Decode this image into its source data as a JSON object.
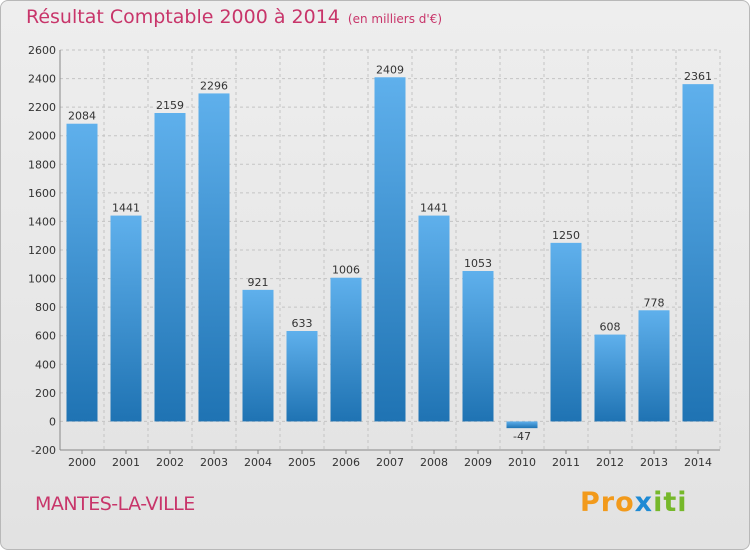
{
  "header": {
    "title": "Résultat Comptable 2000 à 2014",
    "subtitle": "(en milliers d'€)"
  },
  "footer": {
    "town": "MANTES-LA-VILLE",
    "brand": {
      "part1": "Pro",
      "part2": "x",
      "part3": "iti"
    }
  },
  "colors": {
    "title": "#c8356a",
    "bar_light": "#5fb0ec",
    "bar_dark": "#1f73b3",
    "grid": "#c4c4c4"
  },
  "chart_data": {
    "type": "bar",
    "title": "Résultat Comptable 2000 à 2014",
    "subtitle": "(en milliers d'€)",
    "categories": [
      "2000",
      "2001",
      "2002",
      "2003",
      "2004",
      "2005",
      "2006",
      "2007",
      "2008",
      "2009",
      "2010",
      "2011",
      "2012",
      "2013",
      "2014"
    ],
    "values": [
      2084,
      1441,
      2159,
      2296,
      921,
      633,
      1006,
      2409,
      1441,
      1053,
      -47,
      1250,
      608,
      778,
      2361
    ],
    "ylim": [
      -200,
      2600
    ],
    "yticks": [
      -200,
      0,
      200,
      400,
      600,
      800,
      1000,
      1200,
      1400,
      1600,
      1800,
      2000,
      2200,
      2400,
      2600
    ],
    "grid": true,
    "xlabel": "",
    "ylabel": ""
  }
}
